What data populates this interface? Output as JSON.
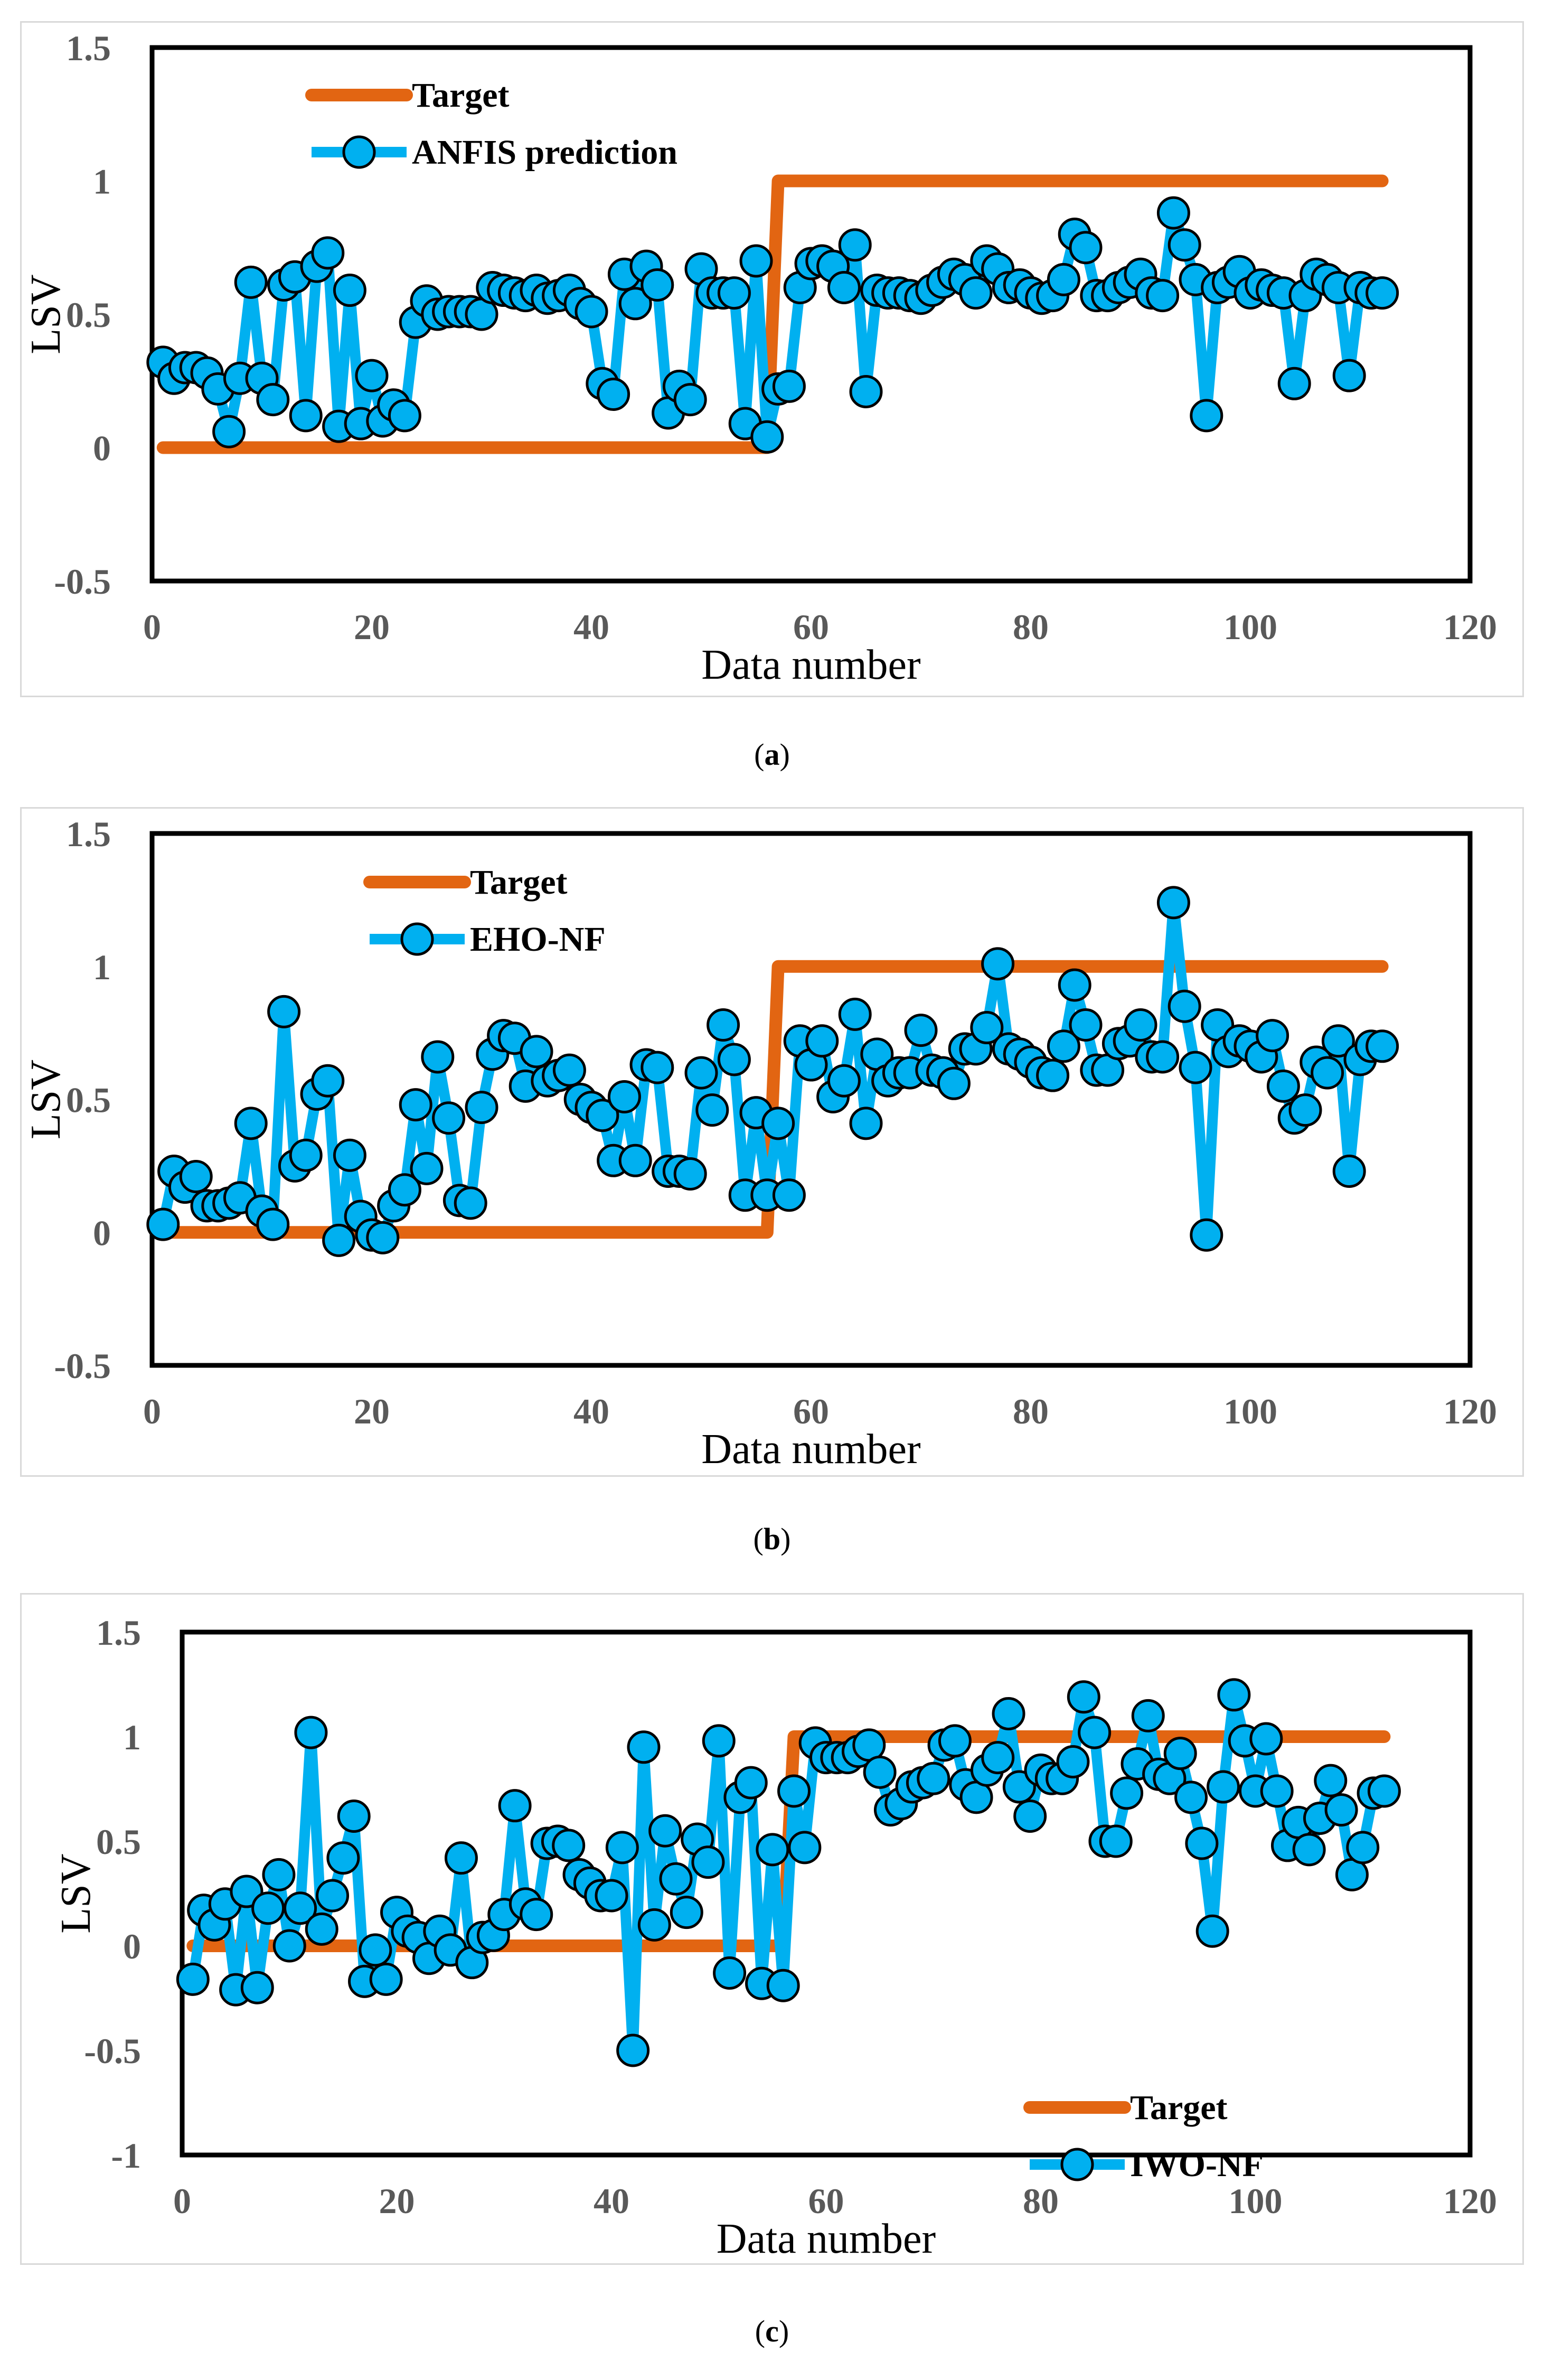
{
  "colors": {
    "target": "#E26512",
    "prediction": "#00B0F0",
    "marker_stroke": "#000000"
  },
  "panels": [
    {
      "label": "a"
    },
    {
      "label": "b"
    },
    {
      "label": "c"
    }
  ],
  "chart_data": [
    {
      "type": "line",
      "xlabel": "Data number",
      "ylabel": "LSV",
      "xlim": [
        0,
        120
      ],
      "ylim": [
        -0.5,
        1.5
      ],
      "xticks": [
        0,
        20,
        40,
        60,
        80,
        100,
        120
      ],
      "yticks": [
        -0.5,
        0,
        0.5,
        1,
        1.5
      ],
      "ytick_labels": [
        "-0.5",
        "0",
        "0.5",
        "1",
        "1.5"
      ],
      "legend_position": "top-left",
      "series": [
        {
          "name": "Target",
          "points": [
            [
              1,
              0
            ],
            [
              56,
              0
            ],
            [
              57,
              1
            ],
            [
              112,
              1
            ]
          ]
        },
        {
          "name": "ANFIS prediction",
          "values": [
            0.32,
            0.26,
            0.3,
            0.3,
            0.28,
            0.22,
            0.06,
            0.26,
            0.62,
            0.26,
            0.18,
            0.61,
            0.64,
            0.12,
            0.68,
            0.73,
            0.08,
            0.59,
            0.09,
            0.27,
            0.1,
            0.16,
            0.12,
            0.47,
            0.55,
            0.5,
            0.51,
            0.51,
            0.51,
            0.5,
            0.6,
            0.59,
            0.58,
            0.57,
            0.59,
            0.56,
            0.57,
            0.59,
            0.54,
            0.51,
            0.24,
            0.2,
            0.65,
            0.54,
            0.68,
            0.61,
            0.13,
            0.23,
            0.18,
            0.67,
            0.58,
            0.58,
            0.58,
            0.09,
            0.7,
            0.04,
            0.22,
            0.23,
            0.6,
            0.69,
            0.7,
            0.68,
            0.6,
            0.76,
            0.21,
            0.59,
            0.58,
            0.58,
            0.57,
            0.56,
            0.59,
            0.62,
            0.65,
            0.63,
            0.58,
            0.7,
            0.67,
            0.6,
            0.61,
            0.58,
            0.56,
            0.57,
            0.63,
            0.8,
            0.75,
            0.57,
            0.57,
            0.6,
            0.62,
            0.65,
            0.58,
            0.57,
            0.88,
            0.76,
            0.63,
            0.12,
            0.6,
            0.62,
            0.66,
            0.58,
            0.61,
            0.59,
            0.58,
            0.24,
            0.57,
            0.65,
            0.63,
            0.6,
            0.27,
            0.6,
            0.58,
            0.58
          ]
        }
      ]
    },
    {
      "type": "line",
      "xlabel": "Data number",
      "ylabel": "LSV",
      "xlim": [
        0,
        120
      ],
      "ylim": [
        -0.5,
        1.5
      ],
      "xticks": [
        0,
        20,
        40,
        60,
        80,
        100,
        120
      ],
      "yticks": [
        -0.5,
        0,
        0.5,
        1,
        1.5
      ],
      "ytick_labels": [
        "-0.5",
        "0",
        "0.5",
        "1",
        "1.5"
      ],
      "legend_position": "top-left",
      "series": [
        {
          "name": "Target",
          "points": [
            [
              1,
              0
            ],
            [
              56,
              0
            ],
            [
              57,
              1
            ],
            [
              112,
              1
            ]
          ]
        },
        {
          "name": "EHO-NF",
          "values": [
            0.03,
            0.23,
            0.17,
            0.21,
            0.1,
            0.1,
            0.11,
            0.13,
            0.41,
            0.08,
            0.03,
            0.83,
            0.25,
            0.29,
            0.52,
            0.57,
            -0.03,
            0.29,
            0.06,
            -0.01,
            -0.02,
            0.1,
            0.16,
            0.48,
            0.24,
            0.66,
            0.43,
            0.12,
            0.11,
            0.47,
            0.67,
            0.74,
            0.73,
            0.55,
            0.68,
            0.57,
            0.59,
            0.61,
            0.5,
            0.47,
            0.44,
            0.27,
            0.51,
            0.27,
            0.63,
            0.62,
            0.23,
            0.23,
            0.22,
            0.6,
            0.46,
            0.78,
            0.65,
            0.14,
            0.45,
            0.14,
            0.41,
            0.14,
            0.72,
            0.63,
            0.72,
            0.51,
            0.57,
            0.82,
            0.41,
            0.67,
            0.57,
            0.6,
            0.6,
            0.76,
            0.61,
            0.6,
            0.56,
            0.69,
            0.69,
            0.77,
            1.01,
            0.69,
            0.67,
            0.64,
            0.6,
            0.59,
            0.7,
            0.93,
            0.78,
            0.61,
            0.61,
            0.71,
            0.72,
            0.78,
            0.66,
            0.66,
            1.24,
            0.85,
            0.62,
            -0.01,
            0.78,
            0.68,
            0.72,
            0.7,
            0.66,
            0.74,
            0.55,
            0.43,
            0.46,
            0.64,
            0.6,
            0.72,
            0.23,
            0.65,
            0.7,
            0.7
          ]
        }
      ]
    },
    {
      "type": "line",
      "xlabel": "Data number",
      "ylabel": "LSV",
      "xlim": [
        0,
        120
      ],
      "ylim": [
        -1,
        1.5
      ],
      "xticks": [
        0,
        20,
        40,
        60,
        80,
        100,
        120
      ],
      "yticks": [
        -1,
        -0.5,
        0,
        0.5,
        1,
        1.5
      ],
      "ytick_labels": [
        "-1",
        "-0.5",
        "0",
        "0.5",
        "1",
        "1.5"
      ],
      "legend_position": "bottom-right",
      "series": [
        {
          "name": "Target",
          "points": [
            [
              1,
              0
            ],
            [
              56,
              0
            ],
            [
              57,
              1
            ],
            [
              112,
              1
            ]
          ]
        },
        {
          "name": "IWO-NF",
          "values": [
            -0.16,
            0.17,
            0.1,
            0.2,
            -0.21,
            0.26,
            -0.2,
            0.18,
            0.34,
            0.0,
            0.18,
            1.02,
            0.08,
            0.24,
            0.42,
            0.62,
            -0.17,
            -0.02,
            -0.16,
            0.16,
            0.07,
            0.04,
            -0.06,
            0.07,
            -0.02,
            0.42,
            -0.08,
            0.04,
            0.05,
            0.15,
            0.67,
            0.2,
            0.15,
            0.49,
            0.5,
            0.48,
            0.34,
            0.3,
            0.24,
            0.24,
            0.47,
            -0.5,
            0.95,
            0.1,
            0.55,
            0.32,
            0.16,
            0.51,
            0.4,
            0.98,
            -0.13,
            0.71,
            0.78,
            -0.18,
            0.46,
            -0.19,
            0.74,
            0.47,
            0.97,
            0.9,
            0.9,
            0.9,
            0.93,
            0.96,
            0.83,
            0.65,
            0.68,
            0.76,
            0.78,
            0.8,
            0.96,
            0.98,
            0.77,
            0.71,
            0.84,
            0.9,
            1.11,
            0.76,
            0.62,
            0.84,
            0.8,
            0.8,
            0.88,
            1.19,
            1.02,
            0.5,
            0.5,
            0.73,
            0.87,
            1.1,
            0.82,
            0.8,
            0.92,
            0.71,
            0.49,
            0.07,
            0.76,
            1.2,
            0.98,
            0.74,
            0.99,
            0.74,
            0.48,
            0.59,
            0.46,
            0.61,
            0.79,
            0.65,
            0.34,
            0.47,
            0.73,
            0.74
          ]
        }
      ]
    }
  ]
}
